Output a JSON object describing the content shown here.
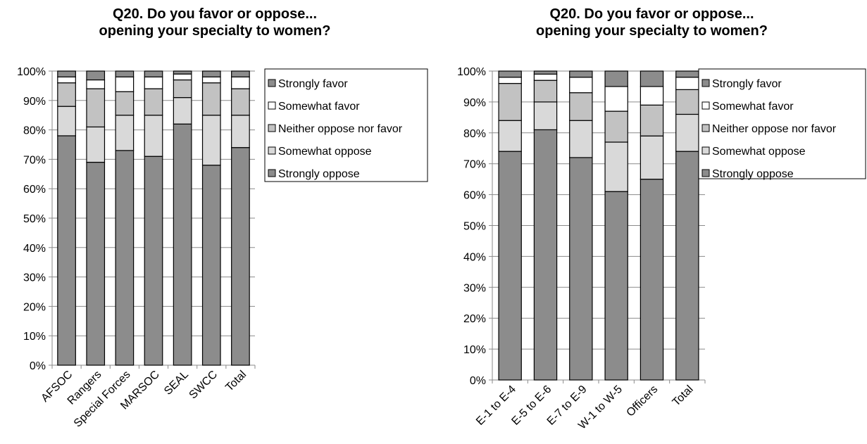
{
  "chart_data": [
    {
      "type": "bar",
      "stacked": true,
      "title": [
        "Q20. Do you favor or oppose...",
        "opening your specialty to women?"
      ],
      "categories": [
        "AFSOC",
        "Rangers",
        "Special Forces",
        "MARSOC",
        "SEAL",
        "SWCC",
        "Total"
      ],
      "yticks": [
        "0%",
        "10%",
        "20%",
        "30%",
        "40%",
        "50%",
        "60%",
        "70%",
        "80%",
        "90%",
        "100%"
      ],
      "ylim": [
        0,
        100
      ],
      "grid": true,
      "legend_position": "right",
      "series": [
        {
          "name": "Strongly oppose",
          "color": "#8c8c8c",
          "values": [
            78,
            69,
            73,
            71,
            82,
            68,
            74
          ]
        },
        {
          "name": "Somewhat oppose",
          "color": "#d9d9d9",
          "values": [
            10,
            12,
            12,
            14,
            9,
            17,
            11
          ]
        },
        {
          "name": "Neither oppose nor favor",
          "color": "#c2c2c2",
          "values": [
            8,
            13,
            8,
            9,
            6,
            11,
            9
          ]
        },
        {
          "name": "Somewhat favor",
          "color": "#ffffff",
          "values": [
            2,
            3,
            5,
            4,
            2,
            2,
            4
          ]
        },
        {
          "name": "Strongly favor",
          "color": "#8c8c8c",
          "values": [
            2,
            3,
            2,
            2,
            1,
            2,
            2
          ]
        }
      ]
    },
    {
      "type": "bar",
      "stacked": true,
      "title": [
        "Q20. Do you favor or oppose...",
        "opening your specialty to women?"
      ],
      "categories": [
        "E-1 to E-4",
        "E-5 to E-6",
        "E-7 to E-9",
        "W-1 to W-5",
        "Officers",
        "Total"
      ],
      "yticks": [
        "0%",
        "10%",
        "20%",
        "30%",
        "40%",
        "50%",
        "60%",
        "70%",
        "80%",
        "90%",
        "100%"
      ],
      "ylim": [
        0,
        100
      ],
      "grid": true,
      "legend_position": "right",
      "series": [
        {
          "name": "Strongly oppose",
          "color": "#8c8c8c",
          "values": [
            74,
            81,
            72,
            61,
            65,
            74
          ]
        },
        {
          "name": "Somewhat oppose",
          "color": "#d9d9d9",
          "values": [
            10,
            9,
            12,
            16,
            14,
            12
          ]
        },
        {
          "name": "Neither oppose nor favor",
          "color": "#c2c2c2",
          "values": [
            12,
            7,
            9,
            10,
            10,
            8
          ]
        },
        {
          "name": "Somewhat favor",
          "color": "#ffffff",
          "values": [
            2,
            2,
            5,
            8,
            6,
            4
          ]
        },
        {
          "name": "Strongly favor",
          "color": "#8c8c8c",
          "values": [
            2,
            1,
            2,
            5,
            5,
            2
          ]
        }
      ]
    }
  ]
}
